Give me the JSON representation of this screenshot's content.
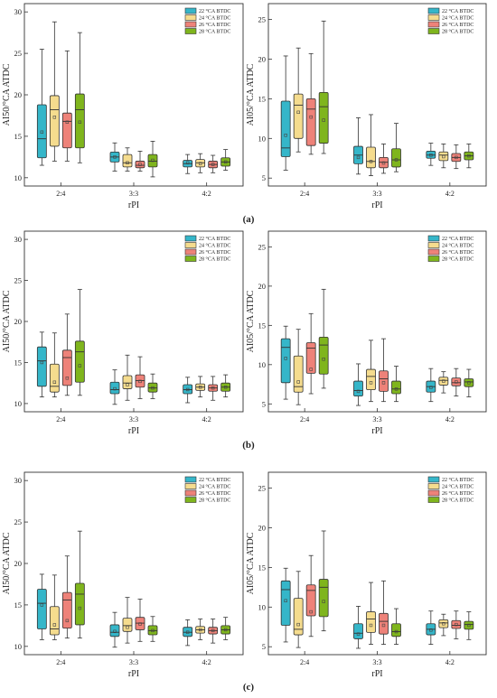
{
  "figure": {
    "series_names": [
      "22 °CA BTDC",
      "24 °CA BTDC",
      "26 °CA BTDC",
      "28 °CA BTDC"
    ],
    "series_colors": [
      "#35b6c9",
      "#f5dc8e",
      "#ee8279",
      "#7fb51d"
    ],
    "panel_labels": [
      "(a)",
      "(b)",
      "(c)"
    ]
  },
  "chart_data": [
    {
      "type": "box",
      "title": "",
      "xlabel": "rPI",
      "ylabel": "AI50/°CA ATDC",
      "categories": [
        "2:4",
        "3:3",
        "4:2"
      ],
      "yticks": [
        10,
        15,
        20,
        25,
        30
      ],
      "ylim": [
        9,
        31
      ],
      "series": [
        {
          "name": "22 °CA BTDC",
          "boxes": [
            {
              "whislo": 11.5,
              "q1": 12.4,
              "med": 14.7,
              "q3": 18.8,
              "whishi": 25.5,
              "mean": 15.5
            },
            {
              "whislo": 10.8,
              "q1": 11.9,
              "med": 12.5,
              "q3": 13.1,
              "whishi": 14.2,
              "mean": 12.5
            },
            {
              "whislo": 10.5,
              "q1": 11.3,
              "med": 11.7,
              "q3": 12.1,
              "whishi": 12.8,
              "mean": 11.8
            }
          ]
        },
        {
          "name": "24 °CA BTDC",
          "boxes": [
            {
              "whislo": 12.0,
              "q1": 13.8,
              "med": 18.2,
              "q3": 19.9,
              "whishi": 28.8,
              "mean": 17.3
            },
            {
              "whislo": 10.8,
              "q1": 11.3,
              "med": 11.8,
              "q3": 12.8,
              "whishi": 13.6,
              "mean": 11.8
            },
            {
              "whislo": 10.6,
              "q1": 11.3,
              "med": 11.8,
              "q3": 12.2,
              "whishi": 12.9,
              "mean": 11.7
            }
          ]
        },
        {
          "name": "26 °CA BTDC",
          "boxes": [
            {
              "whislo": 12.0,
              "q1": 13.6,
              "med": 16.8,
              "q3": 17.8,
              "whishi": 25.3,
              "mean": 16.7
            },
            {
              "whislo": 10.8,
              "q1": 11.2,
              "med": 11.5,
              "q3": 12.0,
              "whishi": 13.2,
              "mean": 11.6
            },
            {
              "whislo": 10.6,
              "q1": 11.2,
              "med": 11.6,
              "q3": 12.0,
              "whishi": 12.7,
              "mean": 11.6
            }
          ]
        },
        {
          "name": "28 °CA BTDC",
          "boxes": [
            {
              "whislo": 11.8,
              "q1": 13.6,
              "med": 18.2,
              "q3": 20.1,
              "whishi": 27.5,
              "mean": 16.7
            },
            {
              "whislo": 10.1,
              "q1": 11.3,
              "med": 12.0,
              "q3": 12.8,
              "whishi": 14.4,
              "mean": 12.1
            },
            {
              "whislo": 10.9,
              "q1": 11.4,
              "med": 11.9,
              "q3": 12.4,
              "whishi": 13.4,
              "mean": 11.9
            }
          ]
        }
      ]
    },
    {
      "type": "box",
      "title": "",
      "xlabel": "rPI",
      "ylabel": "AI05/°CA ATDC",
      "categories": [
        "2:4",
        "3:3",
        "4:2"
      ],
      "yticks": [
        5,
        10,
        15,
        20,
        25
      ],
      "ylim": [
        4,
        27
      ],
      "series": [
        {
          "name": "22 °CA BTDC",
          "boxes": [
            {
              "whislo": 6.0,
              "q1": 7.7,
              "med": 8.8,
              "q3": 14.7,
              "whishi": 20.4,
              "mean": 10.4
            },
            {
              "whislo": 5.5,
              "q1": 6.8,
              "med": 7.9,
              "q3": 9.0,
              "whishi": 12.6,
              "mean": 7.6
            },
            {
              "whislo": 6.6,
              "q1": 7.5,
              "med": 7.9,
              "q3": 8.4,
              "whishi": 9.4,
              "mean": 7.9
            }
          ]
        },
        {
          "name": "24 °CA BTDC",
          "boxes": [
            {
              "whislo": 8.3,
              "q1": 10.0,
              "med": 14.2,
              "q3": 15.6,
              "whishi": 21.4,
              "mean": 13.3
            },
            {
              "whislo": 5.3,
              "q1": 6.3,
              "med": 7.1,
              "q3": 8.9,
              "whishi": 13.0,
              "mean": 7.1
            },
            {
              "whislo": 6.3,
              "q1": 7.2,
              "med": 7.9,
              "q3": 8.3,
              "whishi": 9.3,
              "mean": 7.7
            }
          ]
        },
        {
          "name": "26 °CA BTDC",
          "boxes": [
            {
              "whislo": 8.0,
              "q1": 9.1,
              "med": 13.7,
              "q3": 15.0,
              "whishi": 20.7,
              "mean": 12.7
            },
            {
              "whislo": 5.6,
              "q1": 6.3,
              "med": 7.0,
              "q3": 7.6,
              "whishi": 9.3,
              "mean": 6.9
            },
            {
              "whislo": 6.2,
              "q1": 7.1,
              "med": 7.6,
              "q3": 8.1,
              "whishi": 9.2,
              "mean": 7.6
            }
          ]
        },
        {
          "name": "28 °CA BTDC",
          "boxes": [
            {
              "whislo": 8.1,
              "q1": 9.4,
              "med": 14.0,
              "q3": 15.8,
              "whishi": 24.8,
              "mean": 12.3
            },
            {
              "whislo": 5.8,
              "q1": 6.4,
              "med": 7.3,
              "q3": 8.7,
              "whishi": 11.9,
              "mean": 7.3
            },
            {
              "whislo": 6.3,
              "q1": 7.3,
              "med": 7.8,
              "q3": 8.3,
              "whishi": 9.3,
              "mean": 7.8
            }
          ]
        }
      ]
    },
    {
      "type": "box",
      "title": "",
      "xlabel": "rPI",
      "ylabel": "AI50/°CA ATDC",
      "categories": [
        "2:4",
        "3:3",
        "4:2"
      ],
      "yticks": [
        10,
        15,
        20,
        25,
        30
      ],
      "ylim": [
        9,
        31
      ],
      "series": [
        {
          "name": "22 °CA BTDC",
          "boxes": [
            {
              "whislo": 10.8,
              "q1": 12.1,
              "med": 15.2,
              "q3": 16.9,
              "whishi": 18.7,
              "mean": 15.0
            },
            {
              "whislo": 9.9,
              "q1": 11.2,
              "med": 11.7,
              "q3": 12.6,
              "whishi": 14.1,
              "mean": 11.8
            },
            {
              "whislo": 10.1,
              "q1": 11.2,
              "med": 11.7,
              "q3": 12.3,
              "whishi": 13.2,
              "mean": 11.7
            }
          ]
        },
        {
          "name": "24 °CA BTDC",
          "boxes": [
            {
              "whislo": 10.8,
              "q1": 11.4,
              "med": 12.1,
              "q3": 14.8,
              "whishi": 18.6,
              "mean": 12.6
            },
            {
              "whislo": 10.4,
              "q1": 11.8,
              "med": 12.5,
              "q3": 13.4,
              "whishi": 15.9,
              "mean": 12.3
            },
            {
              "whislo": 10.8,
              "q1": 11.6,
              "med": 12.0,
              "q3": 12.4,
              "whishi": 13.3,
              "mean": 12.0
            }
          ]
        },
        {
          "name": "26 °CA BTDC",
          "boxes": [
            {
              "whislo": 11.0,
              "q1": 12.2,
              "med": 15.6,
              "q3": 16.5,
              "whishi": 20.9,
              "mean": 13.1
            },
            {
              "whislo": 10.6,
              "q1": 12.0,
              "med": 12.8,
              "q3": 13.5,
              "whishi": 15.7,
              "mean": 12.7
            },
            {
              "whislo": 10.4,
              "q1": 11.5,
              "med": 11.9,
              "q3": 12.3,
              "whishi": 13.3,
              "mean": 11.9
            }
          ]
        },
        {
          "name": "28 °CA BTDC",
          "boxes": [
            {
              "whislo": 11.0,
              "q1": 12.6,
              "med": 16.3,
              "q3": 17.6,
              "whishi": 23.9,
              "mean": 14.6
            },
            {
              "whislo": 10.6,
              "q1": 11.4,
              "med": 11.9,
              "q3": 12.5,
              "whishi": 13.6,
              "mean": 11.9
            },
            {
              "whislo": 10.8,
              "q1": 11.5,
              "med": 12.0,
              "q3": 12.5,
              "whishi": 13.5,
              "mean": 12.0
            }
          ]
        }
      ]
    },
    {
      "type": "box",
      "title": "",
      "xlabel": "rPI",
      "ylabel": "AI05/°CA ATDC",
      "categories": [
        "2:4",
        "3:3",
        "4:2"
      ],
      "yticks": [
        5,
        10,
        15,
        20,
        25
      ],
      "ylim": [
        4,
        27
      ],
      "series": [
        {
          "name": "22 °CA BTDC",
          "boxes": [
            {
              "whislo": 5.6,
              "q1": 7.7,
              "med": 12.2,
              "q3": 13.3,
              "whishi": 14.9,
              "mean": 10.8
            },
            {
              "whislo": 4.8,
              "q1": 6.0,
              "med": 6.7,
              "q3": 7.9,
              "whishi": 10.1,
              "mean": 6.6
            },
            {
              "whislo": 5.3,
              "q1": 6.5,
              "med": 7.2,
              "q3": 7.9,
              "whishi": 9.5,
              "mean": 7.1
            }
          ]
        },
        {
          "name": "24 °CA BTDC",
          "boxes": [
            {
              "whislo": 4.9,
              "q1": 6.5,
              "med": 7.2,
              "q3": 11.1,
              "whishi": 14.5,
              "mean": 7.8
            },
            {
              "whislo": 5.3,
              "q1": 6.8,
              "med": 8.5,
              "q3": 9.4,
              "whishi": 13.1,
              "mean": 7.7
            },
            {
              "whislo": 6.4,
              "q1": 7.4,
              "med": 8.0,
              "q3": 8.4,
              "whishi": 9.1,
              "mean": 7.9
            }
          ]
        },
        {
          "name": "26 °CA BTDC",
          "boxes": [
            {
              "whislo": 6.3,
              "q1": 8.9,
              "med": 12.1,
              "q3": 12.8,
              "whishi": 16.5,
              "mean": 9.4
            },
            {
              "whislo": 5.3,
              "q1": 6.6,
              "med": 8.2,
              "q3": 9.2,
              "whishi": 13.3,
              "mean": 7.7
            },
            {
              "whislo": 6.0,
              "q1": 7.3,
              "med": 7.7,
              "q3": 8.3,
              "whishi": 9.5,
              "mean": 7.8
            }
          ]
        },
        {
          "name": "28 °CA BTDC",
          "boxes": [
            {
              "whislo": 7.0,
              "q1": 8.8,
              "med": 12.5,
              "q3": 13.5,
              "whishi": 19.6,
              "mean": 10.7
            },
            {
              "whislo": 5.3,
              "q1": 6.3,
              "med": 6.9,
              "q3": 7.9,
              "whishi": 9.8,
              "mean": 6.9
            },
            {
              "whislo": 5.9,
              "q1": 7.2,
              "med": 7.8,
              "q3": 8.2,
              "whishi": 9.4,
              "mean": 7.7
            }
          ]
        }
      ]
    },
    {
      "type": "box",
      "title": "",
      "xlabel": "rPI",
      "ylabel": "AI50/°CA ATDC",
      "categories": [
        "2:4",
        "3:3",
        "4:2"
      ],
      "yticks": [
        10,
        15,
        20,
        25,
        30
      ],
      "ylim": [
        9,
        31
      ],
      "series": [
        {
          "name": "22 °CA BTDC",
          "boxes": [
            {
              "whislo": 10.8,
              "q1": 12.1,
              "med": 15.2,
              "q3": 16.9,
              "whishi": 18.7,
              "mean": 15.0
            },
            {
              "whislo": 9.9,
              "q1": 11.2,
              "med": 11.7,
              "q3": 12.6,
              "whishi": 14.1,
              "mean": 11.8
            },
            {
              "whislo": 10.1,
              "q1": 11.2,
              "med": 11.7,
              "q3": 12.3,
              "whishi": 13.2,
              "mean": 11.7
            }
          ]
        },
        {
          "name": "24 °CA BTDC",
          "boxes": [
            {
              "whislo": 10.8,
              "q1": 11.4,
              "med": 12.1,
              "q3": 14.8,
              "whishi": 18.6,
              "mean": 12.6
            },
            {
              "whislo": 10.4,
              "q1": 11.8,
              "med": 12.5,
              "q3": 13.4,
              "whishi": 15.9,
              "mean": 12.3
            },
            {
              "whislo": 10.8,
              "q1": 11.6,
              "med": 12.0,
              "q3": 12.4,
              "whishi": 13.3,
              "mean": 12.0
            }
          ]
        },
        {
          "name": "26 °CA BTDC",
          "boxes": [
            {
              "whislo": 11.0,
              "q1": 12.2,
              "med": 15.6,
              "q3": 16.5,
              "whishi": 20.9,
              "mean": 13.1
            },
            {
              "whislo": 10.6,
              "q1": 12.0,
              "med": 12.8,
              "q3": 13.5,
              "whishi": 15.7,
              "mean": 12.7
            },
            {
              "whislo": 10.4,
              "q1": 11.5,
              "med": 11.9,
              "q3": 12.3,
              "whishi": 13.3,
              "mean": 11.9
            }
          ]
        },
        {
          "name": "28 °CA BTDC",
          "boxes": [
            {
              "whislo": 11.0,
              "q1": 12.6,
              "med": 16.3,
              "q3": 17.6,
              "whishi": 23.9,
              "mean": 14.6
            },
            {
              "whislo": 10.6,
              "q1": 11.4,
              "med": 11.9,
              "q3": 12.5,
              "whishi": 13.6,
              "mean": 11.9
            },
            {
              "whislo": 10.8,
              "q1": 11.5,
              "med": 12.0,
              "q3": 12.5,
              "whishi": 13.5,
              "mean": 12.0
            }
          ]
        }
      ]
    },
    {
      "type": "box",
      "title": "",
      "xlabel": "rPI",
      "ylabel": "AI05/°CA ATDC",
      "categories": [
        "2:4",
        "3:3",
        "4:2"
      ],
      "yticks": [
        5,
        10,
        15,
        20,
        25
      ],
      "ylim": [
        4,
        27
      ],
      "series": [
        {
          "name": "22 °CA BTDC",
          "boxes": [
            {
              "whislo": 5.6,
              "q1": 7.7,
              "med": 12.2,
              "q3": 13.3,
              "whishi": 14.9,
              "mean": 10.8
            },
            {
              "whislo": 4.8,
              "q1": 6.0,
              "med": 6.7,
              "q3": 7.9,
              "whishi": 10.1,
              "mean": 6.6
            },
            {
              "whislo": 5.3,
              "q1": 6.5,
              "med": 7.2,
              "q3": 7.9,
              "whishi": 9.5,
              "mean": 7.1
            }
          ]
        },
        {
          "name": "24 °CA BTDC",
          "boxes": [
            {
              "whislo": 4.9,
              "q1": 6.5,
              "med": 7.2,
              "q3": 11.1,
              "whishi": 14.5,
              "mean": 7.8
            },
            {
              "whislo": 5.3,
              "q1": 6.8,
              "med": 8.5,
              "q3": 9.4,
              "whishi": 13.1,
              "mean": 7.7
            },
            {
              "whislo": 6.4,
              "q1": 7.4,
              "med": 8.0,
              "q3": 8.4,
              "whishi": 9.1,
              "mean": 7.9
            }
          ]
        },
        {
          "name": "26 °CA BTDC",
          "boxes": [
            {
              "whislo": 6.3,
              "q1": 8.9,
              "med": 12.1,
              "q3": 12.8,
              "whishi": 16.5,
              "mean": 9.4
            },
            {
              "whislo": 5.3,
              "q1": 6.6,
              "med": 8.2,
              "q3": 9.2,
              "whishi": 13.3,
              "mean": 7.7
            },
            {
              "whislo": 6.0,
              "q1": 7.3,
              "med": 7.7,
              "q3": 8.3,
              "whishi": 9.5,
              "mean": 7.8
            }
          ]
        },
        {
          "name": "28 °CA BTDC",
          "boxes": [
            {
              "whislo": 7.0,
              "q1": 8.8,
              "med": 12.5,
              "q3": 13.5,
              "whishi": 19.6,
              "mean": 10.7
            },
            {
              "whislo": 5.3,
              "q1": 6.3,
              "med": 6.9,
              "q3": 7.9,
              "whishi": 9.8,
              "mean": 6.9
            },
            {
              "whislo": 5.9,
              "q1": 7.2,
              "med": 7.8,
              "q3": 8.2,
              "whishi": 9.4,
              "mean": 7.7
            }
          ]
        }
      ]
    }
  ]
}
